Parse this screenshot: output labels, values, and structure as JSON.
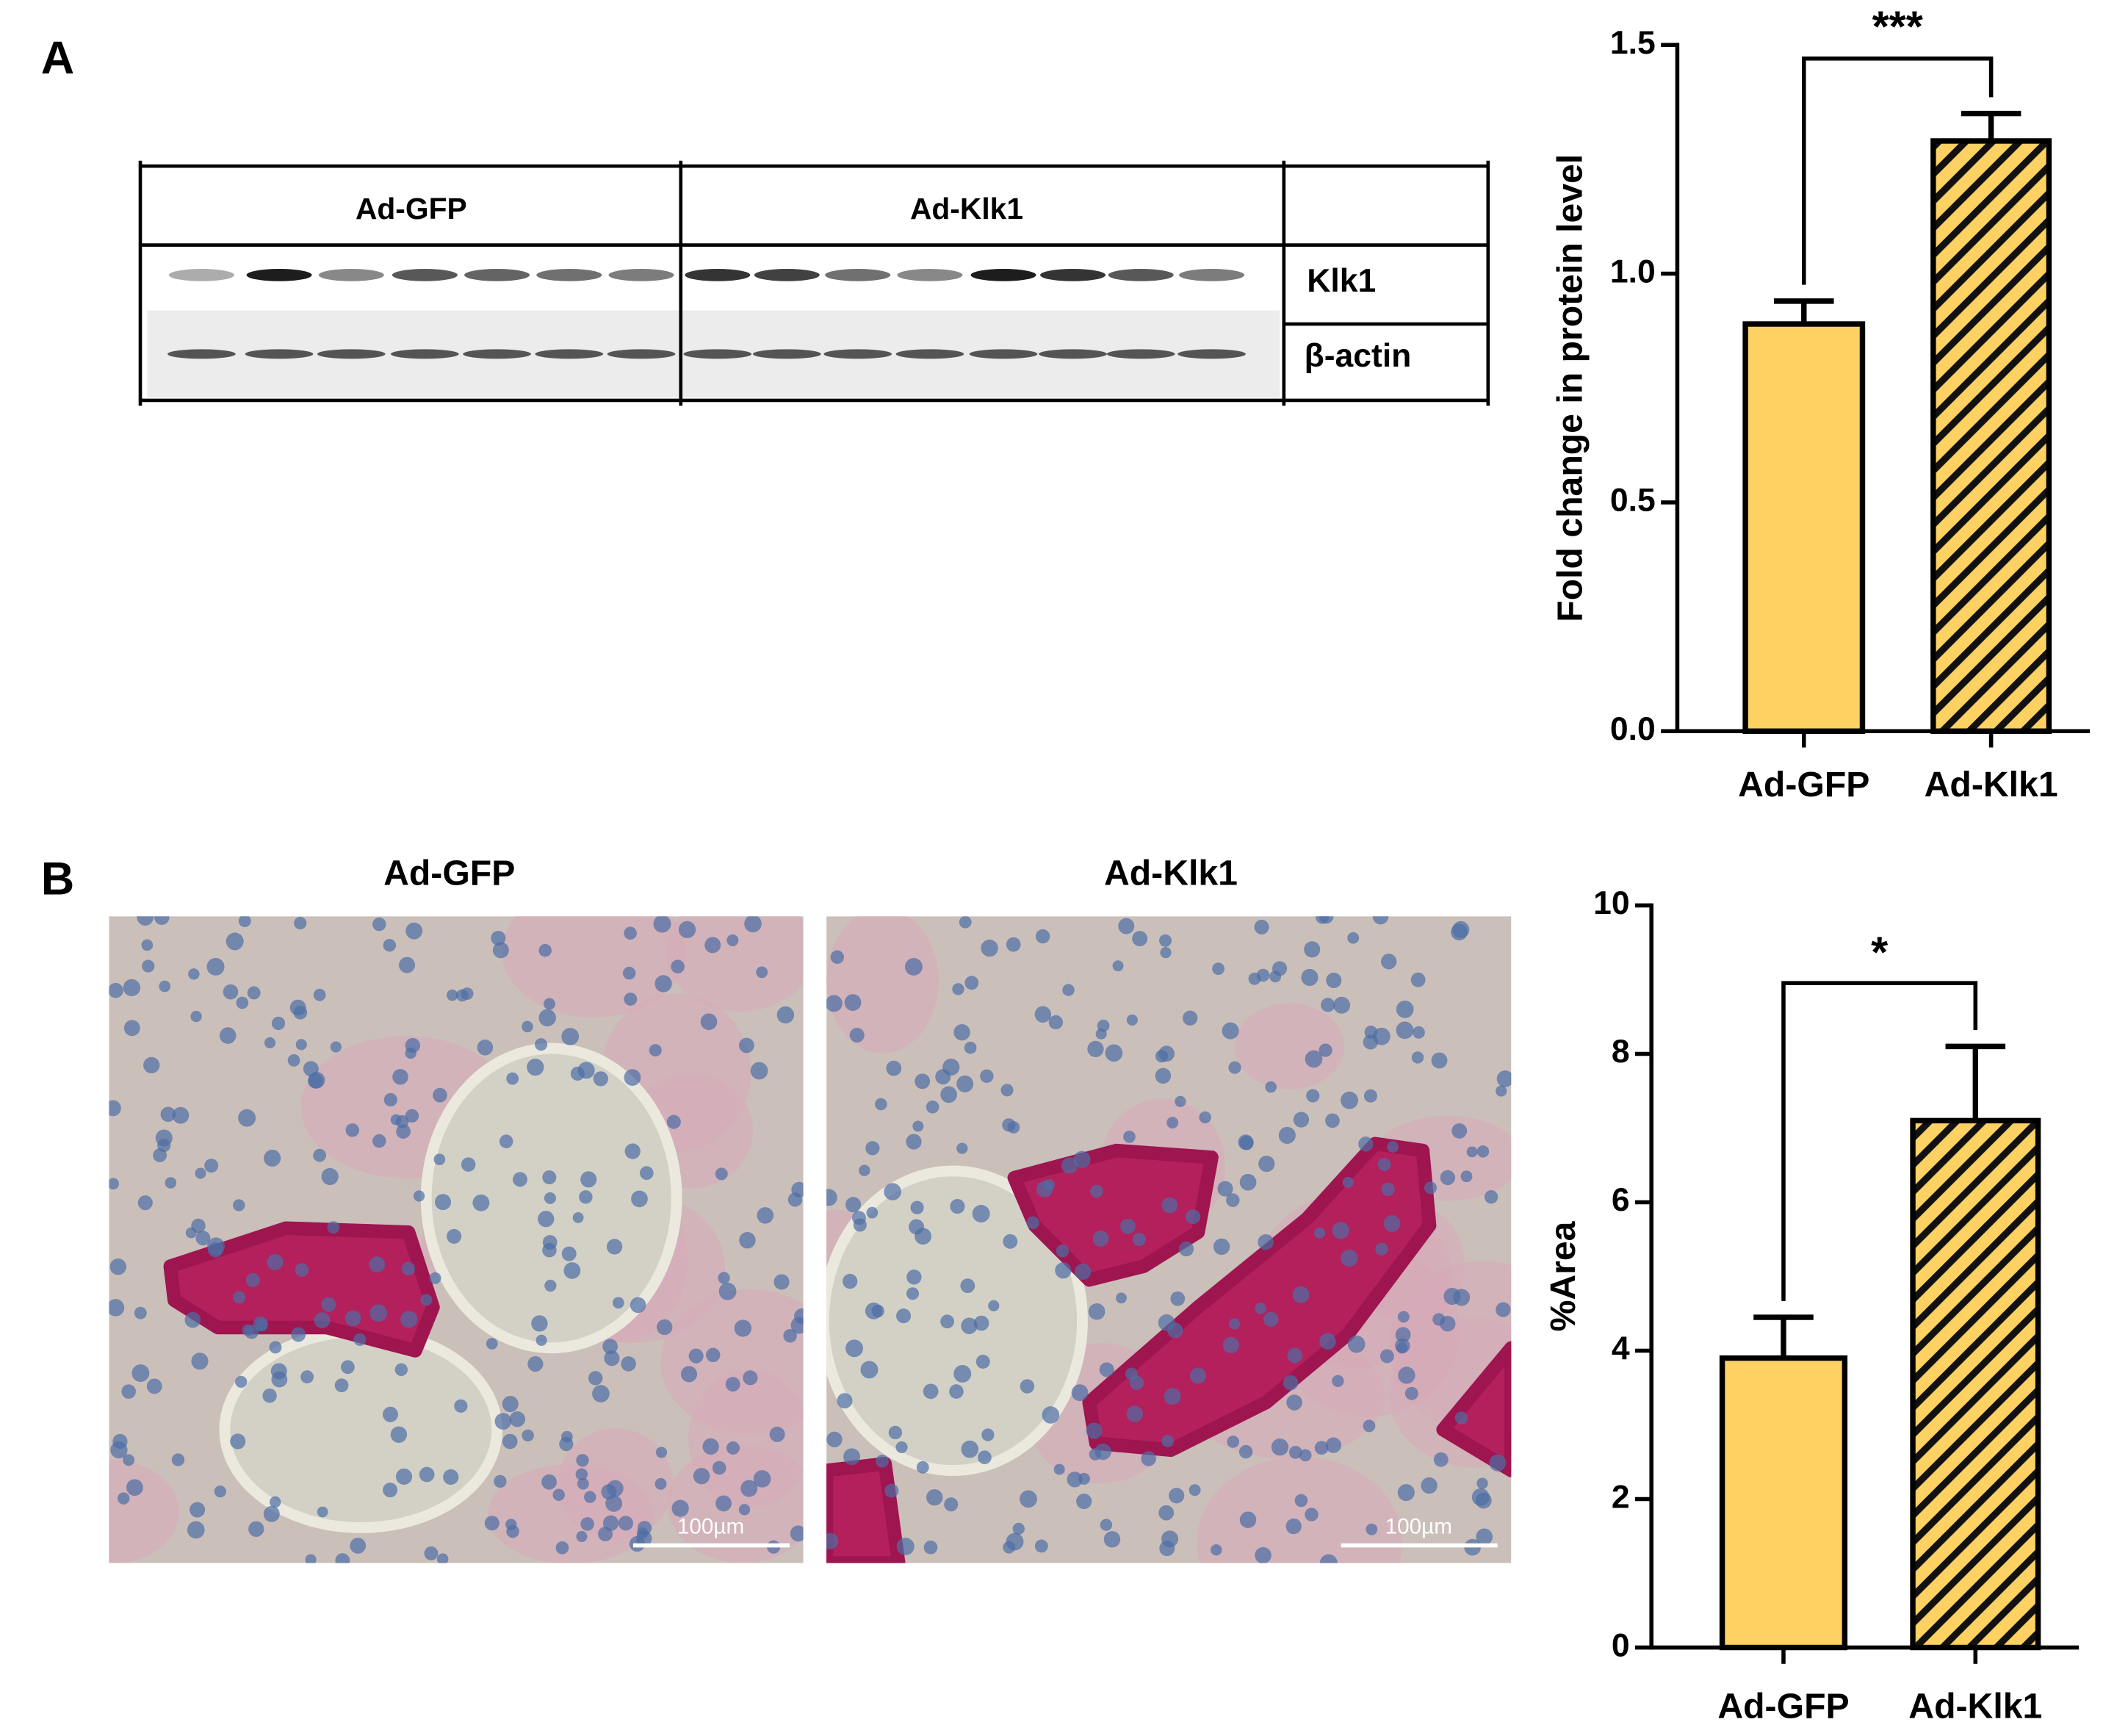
{
  "panels": [
    "A",
    "B"
  ],
  "blot": {
    "groups": [
      "Ad-GFP",
      "Ad-Klk1"
    ],
    "rows": [
      "Klk1",
      "β-actin"
    ]
  },
  "images": [
    {
      "title": "Ad-GFP",
      "scale_bar": "100µm"
    },
    {
      "title": "Ad-Klk1",
      "scale_bar": "100µm"
    }
  ],
  "chart_data": [
    {
      "type": "bar",
      "ylabel": "Fold change in protein level",
      "categories": [
        "Ad-GFP",
        "Ad-Klk1"
      ],
      "values": [
        0.89,
        1.29
      ],
      "errors": [
        0.05,
        0.06
      ],
      "colors": [
        "#fdd162",
        "#fdd162"
      ],
      "patterns": [
        "solid",
        "hatched"
      ],
      "ylim": [
        0,
        1.5
      ],
      "yticks": [
        {
          "value": 0,
          "label": "0.0"
        },
        0.5,
        {
          "value": 1,
          "label": "1.0"
        },
        1.5
      ],
      "annotation": "***"
    },
    {
      "type": "bar",
      "ylabel": "%Area",
      "categories": [
        "Ad-GFP",
        "Ad-Klk1"
      ],
      "values": [
        3.9,
        7.1
      ],
      "errors": [
        0.55,
        1.0
      ],
      "colors": [
        "#fdd162",
        "#fdd162"
      ],
      "patterns": [
        "solid",
        "hatched"
      ],
      "ylim": [
        0,
        10
      ],
      "yticks": [
        0,
        2,
        4,
        6,
        8,
        10
      ],
      "annotation": "*"
    }
  ]
}
